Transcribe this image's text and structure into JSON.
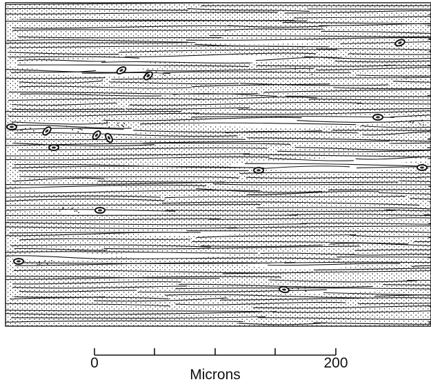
{
  "figure": {
    "scale_bar": {
      "start_label": "0",
      "end_label": "200",
      "unit_label": "Microns"
    }
  }
}
